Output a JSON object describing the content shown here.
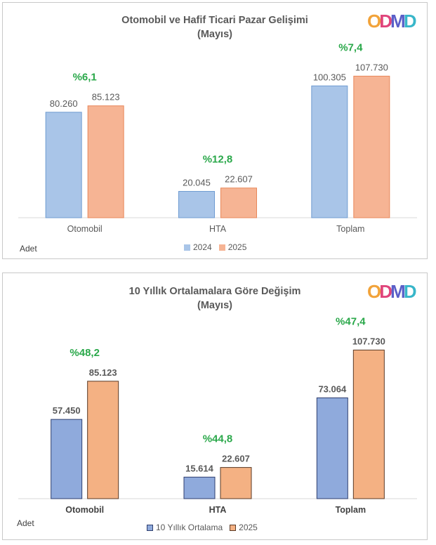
{
  "charts": [
    {
      "title": "Otomobil ve Hafif Ticari Pazar Gelişimi",
      "subtitle": "(Mayıs)",
      "logo": "ODMD",
      "unit_label": "Adet",
      "legend": [
        "2024",
        "2025"
      ],
      "categories": [
        "Otomobil",
        "HTA",
        "Toplam"
      ],
      "series": [
        {
          "name": "2024",
          "values": [
            80260,
            20045,
            100305
          ],
          "labels": [
            "80.260",
            "20.045",
            "100.305"
          ],
          "color": "#a9c5e8",
          "edge": "#6f9bd1"
        },
        {
          "name": "2025",
          "values": [
            85123,
            22607,
            107730
          ],
          "labels": [
            "85.123",
            "22.607",
            "107.730"
          ],
          "color": "#f6b494",
          "edge": "#e8875a"
        }
      ],
      "changes": [
        "%6,1",
        "%12,8",
        "%7,4"
      ]
    },
    {
      "title": "10 Yıllık Ortalamalara  Göre Değişim",
      "subtitle": "(Mayıs)",
      "logo": "ODMD",
      "unit_label": "Adet",
      "legend": [
        "10 Yıllık Ortalama",
        "2025"
      ],
      "categories": [
        "Otomobil",
        "HTA",
        "Toplam"
      ],
      "series": [
        {
          "name": "10 Yıllık Ortalama",
          "values": [
            57450,
            15614,
            73064
          ],
          "labels": [
            "57.450",
            "15.614",
            "73.064"
          ],
          "color": "#8faadc",
          "edge": "#2f3f6f"
        },
        {
          "name": "2025",
          "values": [
            85123,
            22607,
            107730
          ],
          "labels": [
            "85.123",
            "22.607",
            "107.730"
          ],
          "color": "#f4b183",
          "edge": "#5a3a26"
        }
      ],
      "changes": [
        "%48,2",
        "%44,8",
        "%47,4"
      ]
    }
  ],
  "chart_data": [
    {
      "type": "bar",
      "title": "Otomobil ve Hafif Ticari Pazar Gelişimi",
      "subtitle": "(Mayıs)",
      "categories": [
        "Otomobil",
        "HTA",
        "Toplam"
      ],
      "series": [
        {
          "name": "2024",
          "values": [
            80260,
            20045,
            100305
          ]
        },
        {
          "name": "2025",
          "values": [
            85123,
            22607,
            107730
          ]
        }
      ],
      "annotations": [
        "%6,1",
        "%12,8",
        "%7,4"
      ],
      "ylabel": "Adet",
      "ylim": [
        0,
        140000
      ],
      "grid": false,
      "legend": "bottom"
    },
    {
      "type": "bar",
      "title": "10 Yıllık Ortalamalara  Göre Değişim",
      "subtitle": "(Mayıs)",
      "categories": [
        "Otomobil",
        "HTA",
        "Toplam"
      ],
      "series": [
        {
          "name": "10 Yıllık Ortalama",
          "values": [
            57450,
            15614,
            73064
          ]
        },
        {
          "name": "2025",
          "values": [
            85123,
            22607,
            107730
          ]
        }
      ],
      "annotations": [
        "%48,2",
        "%44,8",
        "%47,4"
      ],
      "ylabel": "Adet",
      "ylim": [
        0,
        140000
      ],
      "grid": false,
      "legend": "bottom"
    }
  ],
  "colors": {
    "change_text": "#2aa84a",
    "value_text": "#595959",
    "logo": [
      "#f2a33a",
      "#e0457b",
      "#5a5fc8",
      "#38b6c9"
    ]
  }
}
